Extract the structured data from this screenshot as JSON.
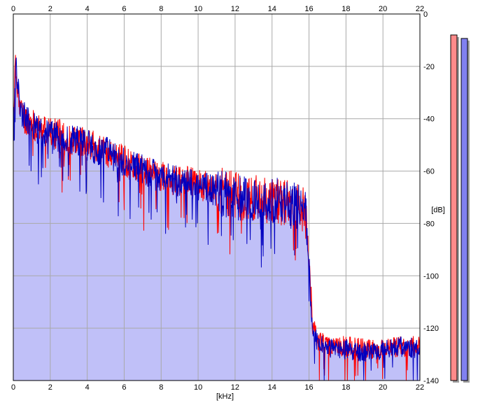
{
  "chart_data": {
    "type": "line",
    "xlabel": "[kHz]",
    "ylabel": "[dB]",
    "xlim": [
      0,
      22
    ],
    "ylim": [
      -140,
      0
    ],
    "x_ticks": [
      0,
      2,
      4,
      6,
      8,
      10,
      12,
      14,
      16,
      18,
      20,
      22
    ],
    "y_ticks": [
      0,
      -20,
      -40,
      -60,
      -80,
      -100,
      -120,
      -140
    ],
    "grid": true,
    "fill_under": true,
    "colors": {
      "left_channel": "#ff0000",
      "right_channel": "#0000c0",
      "fill": "#c0c0f8",
      "left_meter": "#ff8a8a",
      "right_meter": "#8080f0"
    },
    "series": [
      {
        "x": [
          0,
          0.1,
          0.25,
          0.4,
          0.6,
          0.8,
          1,
          1.5,
          2,
          2.5,
          3,
          3.5,
          4,
          4.5,
          5,
          5.5,
          6,
          6.5,
          7,
          7.5,
          8,
          8.5,
          9,
          9.5,
          10,
          10.5,
          11,
          11.5,
          12,
          12.5,
          13,
          13.5,
          14,
          14.5,
          15,
          15.5,
          15.8,
          16,
          16.2,
          16.4,
          17,
          18,
          19,
          20,
          21,
          22
        ],
        "values": [
          -41,
          -20,
          -28,
          -37,
          -40,
          -41,
          -42,
          -44,
          -45,
          -46,
          -48,
          -48,
          -49,
          -51,
          -53,
          -54,
          -56,
          -58,
          -60,
          -61,
          -62,
          -63,
          -64,
          -64,
          -65,
          -66,
          -67,
          -68,
          -69,
          -70,
          -70,
          -71,
          -71,
          -72,
          -72,
          -73,
          -76,
          -95,
          -118,
          -124,
          -127,
          -127,
          -128,
          -128,
          -127,
          -127
        ]
      },
      {
        "x": [
          0,
          0.1,
          0.25,
          0.4,
          0.6,
          0.8,
          1,
          1.5,
          2,
          2.5,
          3,
          3.5,
          4,
          4.5,
          5,
          5.5,
          6,
          6.5,
          7,
          7.5,
          8,
          8.5,
          9,
          9.5,
          10,
          10.5,
          11,
          11.5,
          12,
          12.5,
          13,
          13.5,
          14,
          14.5,
          15,
          15.5,
          15.8,
          16,
          16.2,
          16.4,
          17,
          18,
          19,
          20,
          21,
          22
        ],
        "values": [
          -40,
          -19,
          -27,
          -36,
          -39,
          -41,
          -43,
          -45,
          -46,
          -47,
          -49,
          -48,
          -50,
          -52,
          -52,
          -55,
          -57,
          -58,
          -59,
          -61,
          -63,
          -63,
          -64,
          -65,
          -66,
          -66,
          -68,
          -69,
          -70,
          -70,
          -71,
          -71,
          -72,
          -71,
          -73,
          -74,
          -75,
          -97,
          -120,
          -125,
          -128,
          -128,
          -129,
          -128,
          -127,
          -128
        ]
      }
    ],
    "level_meters": [
      0.99,
      0.98
    ]
  }
}
